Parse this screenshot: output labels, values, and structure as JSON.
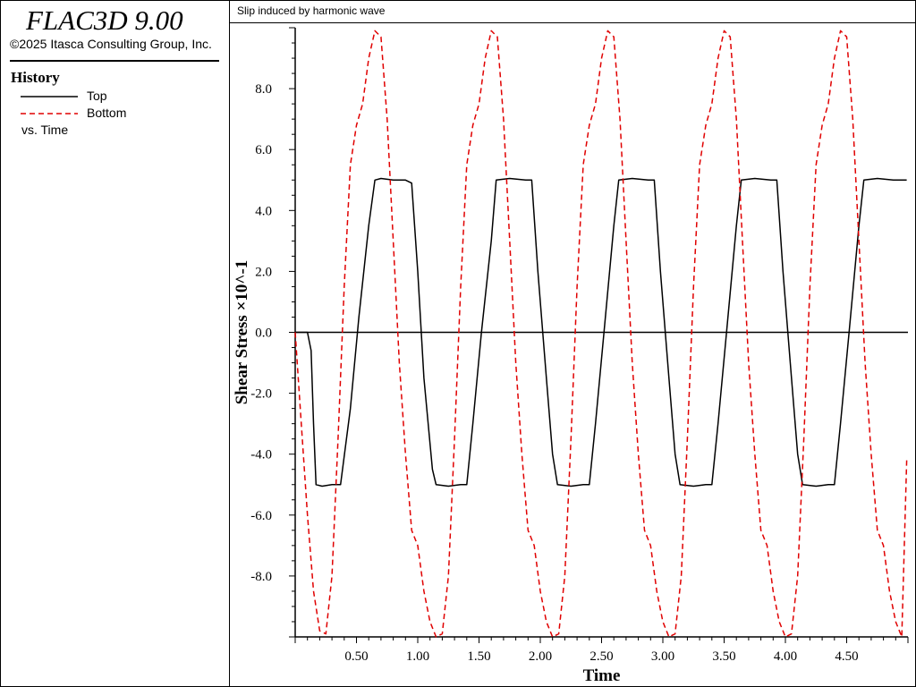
{
  "sidebar": {
    "app_title": "FLAC3D 9.00",
    "copyright": "©2025 Itasca Consulting Group, Inc.",
    "history_heading": "History",
    "legend": [
      {
        "label": "Top",
        "color": "#000000",
        "style": "solid"
      },
      {
        "label": "Bottom",
        "color": "#e00000",
        "style": "dashed"
      }
    ],
    "vs_label": "vs. Time"
  },
  "chart_data": {
    "type": "line",
    "title": "Slip induced by harmonic wave",
    "xlabel": "Time",
    "ylabel": "Shear Stress ×10^-1",
    "xlim": [
      0.0,
      5.0
    ],
    "ylim": [
      -10.0,
      10.0
    ],
    "x_ticks": [
      0.5,
      1.0,
      1.5,
      2.0,
      2.5,
      3.0,
      3.5,
      4.0,
      4.5
    ],
    "x_tick_labels": [
      "0.50",
      "1.00",
      "1.50",
      "2.00",
      "2.50",
      "3.00",
      "3.50",
      "4.00",
      "4.50"
    ],
    "y_ticks": [
      -8.0,
      -6.0,
      -4.0,
      -2.0,
      0.0,
      2.0,
      4.0,
      6.0,
      8.0
    ],
    "y_tick_labels": [
      "-8.0",
      "-6.0",
      "-4.0",
      "-2.0",
      "0.0",
      "2.0",
      "4.0",
      "6.0",
      "8.0"
    ],
    "grid": false,
    "zero_line": true,
    "series": [
      {
        "name": "Top",
        "color": "#000000",
        "style": "solid",
        "points": [
          [
            0.0,
            0.0
          ],
          [
            0.1,
            0.0
          ],
          [
            0.13,
            -0.6
          ],
          [
            0.15,
            -3.0
          ],
          [
            0.17,
            -5.0
          ],
          [
            0.22,
            -5.05
          ],
          [
            0.3,
            -5.0
          ],
          [
            0.37,
            -5.0
          ],
          [
            0.45,
            -2.5
          ],
          [
            0.52,
            0.5
          ],
          [
            0.6,
            3.5
          ],
          [
            0.65,
            5.0
          ],
          [
            0.7,
            5.05
          ],
          [
            0.8,
            5.0
          ],
          [
            0.9,
            5.0
          ],
          [
            0.95,
            4.9
          ],
          [
            1.0,
            2.0
          ],
          [
            1.05,
            -1.5
          ],
          [
            1.12,
            -4.5
          ],
          [
            1.15,
            -5.0
          ],
          [
            1.25,
            -5.05
          ],
          [
            1.35,
            -5.0
          ],
          [
            1.4,
            -5.0
          ],
          [
            1.45,
            -3.0
          ],
          [
            1.52,
            0.0
          ],
          [
            1.6,
            3.0
          ],
          [
            1.64,
            5.0
          ],
          [
            1.75,
            5.05
          ],
          [
            1.88,
            5.0
          ],
          [
            1.93,
            5.0
          ],
          [
            1.98,
            2.0
          ],
          [
            2.05,
            -1.5
          ],
          [
            2.1,
            -4.0
          ],
          [
            2.14,
            -5.0
          ],
          [
            2.25,
            -5.05
          ],
          [
            2.35,
            -5.0
          ],
          [
            2.4,
            -5.0
          ],
          [
            2.45,
            -3.0
          ],
          [
            2.52,
            0.0
          ],
          [
            2.6,
            3.5
          ],
          [
            2.64,
            5.0
          ],
          [
            2.75,
            5.05
          ],
          [
            2.88,
            5.0
          ],
          [
            2.93,
            5.0
          ],
          [
            2.98,
            2.0
          ],
          [
            3.05,
            -1.5
          ],
          [
            3.1,
            -4.0
          ],
          [
            3.14,
            -5.0
          ],
          [
            3.25,
            -5.05
          ],
          [
            3.35,
            -5.0
          ],
          [
            3.4,
            -5.0
          ],
          [
            3.45,
            -3.0
          ],
          [
            3.52,
            0.0
          ],
          [
            3.6,
            3.5
          ],
          [
            3.64,
            5.0
          ],
          [
            3.75,
            5.05
          ],
          [
            3.88,
            5.0
          ],
          [
            3.93,
            5.0
          ],
          [
            3.98,
            2.0
          ],
          [
            4.05,
            -1.5
          ],
          [
            4.1,
            -4.0
          ],
          [
            4.14,
            -5.0
          ],
          [
            4.25,
            -5.05
          ],
          [
            4.35,
            -5.0
          ],
          [
            4.4,
            -5.0
          ],
          [
            4.45,
            -3.0
          ],
          [
            4.52,
            0.0
          ],
          [
            4.6,
            3.5
          ],
          [
            4.64,
            5.0
          ],
          [
            4.75,
            5.05
          ],
          [
            4.88,
            5.0
          ],
          [
            4.99,
            5.0
          ]
        ]
      },
      {
        "name": "Bottom",
        "color": "#e00000",
        "style": "dashed",
        "points": [
          [
            0.0,
            0.0
          ],
          [
            0.05,
            -3.0
          ],
          [
            0.1,
            -6.0
          ],
          [
            0.15,
            -8.5
          ],
          [
            0.2,
            -9.8
          ],
          [
            0.25,
            -9.9
          ],
          [
            0.3,
            -8.0
          ],
          [
            0.35,
            -3.5
          ],
          [
            0.4,
            1.5
          ],
          [
            0.45,
            5.5
          ],
          [
            0.5,
            6.8
          ],
          [
            0.55,
            7.5
          ],
          [
            0.6,
            9.0
          ],
          [
            0.65,
            9.9
          ],
          [
            0.7,
            9.7
          ],
          [
            0.75,
            7.0
          ],
          [
            0.8,
            3.0
          ],
          [
            0.85,
            -1.0
          ],
          [
            0.9,
            -4.0
          ],
          [
            0.95,
            -6.5
          ],
          [
            1.0,
            -7.0
          ],
          [
            1.05,
            -8.5
          ],
          [
            1.1,
            -9.5
          ],
          [
            1.15,
            -10.0
          ],
          [
            1.2,
            -9.9
          ],
          [
            1.25,
            -8.0
          ],
          [
            1.3,
            -3.5
          ],
          [
            1.35,
            1.5
          ],
          [
            1.4,
            5.5
          ],
          [
            1.45,
            6.8
          ],
          [
            1.5,
            7.5
          ],
          [
            1.55,
            9.0
          ],
          [
            1.6,
            9.9
          ],
          [
            1.65,
            9.7
          ],
          [
            1.7,
            7.0
          ],
          [
            1.75,
            3.0
          ],
          [
            1.8,
            -1.0
          ],
          [
            1.85,
            -4.0
          ],
          [
            1.9,
            -6.5
          ],
          [
            1.95,
            -7.0
          ],
          [
            2.0,
            -8.5
          ],
          [
            2.05,
            -9.5
          ],
          [
            2.1,
            -10.0
          ],
          [
            2.15,
            -9.9
          ],
          [
            2.2,
            -8.0
          ],
          [
            2.25,
            -3.5
          ],
          [
            2.3,
            1.5
          ],
          [
            2.35,
            5.5
          ],
          [
            2.4,
            6.8
          ],
          [
            2.45,
            7.5
          ],
          [
            2.5,
            9.0
          ],
          [
            2.55,
            9.9
          ],
          [
            2.6,
            9.7
          ],
          [
            2.65,
            7.0
          ],
          [
            2.7,
            3.0
          ],
          [
            2.75,
            -1.0
          ],
          [
            2.8,
            -4.0
          ],
          [
            2.85,
            -6.5
          ],
          [
            2.9,
            -7.0
          ],
          [
            2.95,
            -8.5
          ],
          [
            3.0,
            -9.5
          ],
          [
            3.05,
            -10.0
          ],
          [
            3.1,
            -9.9
          ],
          [
            3.15,
            -8.0
          ],
          [
            3.2,
            -3.5
          ],
          [
            3.25,
            1.5
          ],
          [
            3.3,
            5.5
          ],
          [
            3.35,
            6.8
          ],
          [
            3.4,
            7.5
          ],
          [
            3.45,
            9.0
          ],
          [
            3.5,
            9.9
          ],
          [
            3.55,
            9.7
          ],
          [
            3.6,
            7.0
          ],
          [
            3.65,
            3.0
          ],
          [
            3.7,
            -1.0
          ],
          [
            3.75,
            -4.0
          ],
          [
            3.8,
            -6.5
          ],
          [
            3.85,
            -7.0
          ],
          [
            3.9,
            -8.5
          ],
          [
            3.95,
            -9.5
          ],
          [
            4.0,
            -10.0
          ],
          [
            4.05,
            -9.9
          ],
          [
            4.1,
            -8.0
          ],
          [
            4.15,
            -3.5
          ],
          [
            4.2,
            1.5
          ],
          [
            4.25,
            5.5
          ],
          [
            4.3,
            6.8
          ],
          [
            4.35,
            7.5
          ],
          [
            4.4,
            9.0
          ],
          [
            4.45,
            9.9
          ],
          [
            4.5,
            9.7
          ],
          [
            4.55,
            7.0
          ],
          [
            4.6,
            3.0
          ],
          [
            4.65,
            -1.0
          ],
          [
            4.7,
            -4.0
          ],
          [
            4.75,
            -6.5
          ],
          [
            4.8,
            -7.0
          ],
          [
            4.85,
            -8.5
          ],
          [
            4.9,
            -9.5
          ],
          [
            4.95,
            -10.0
          ],
          [
            4.99,
            -4.2
          ]
        ]
      }
    ]
  }
}
